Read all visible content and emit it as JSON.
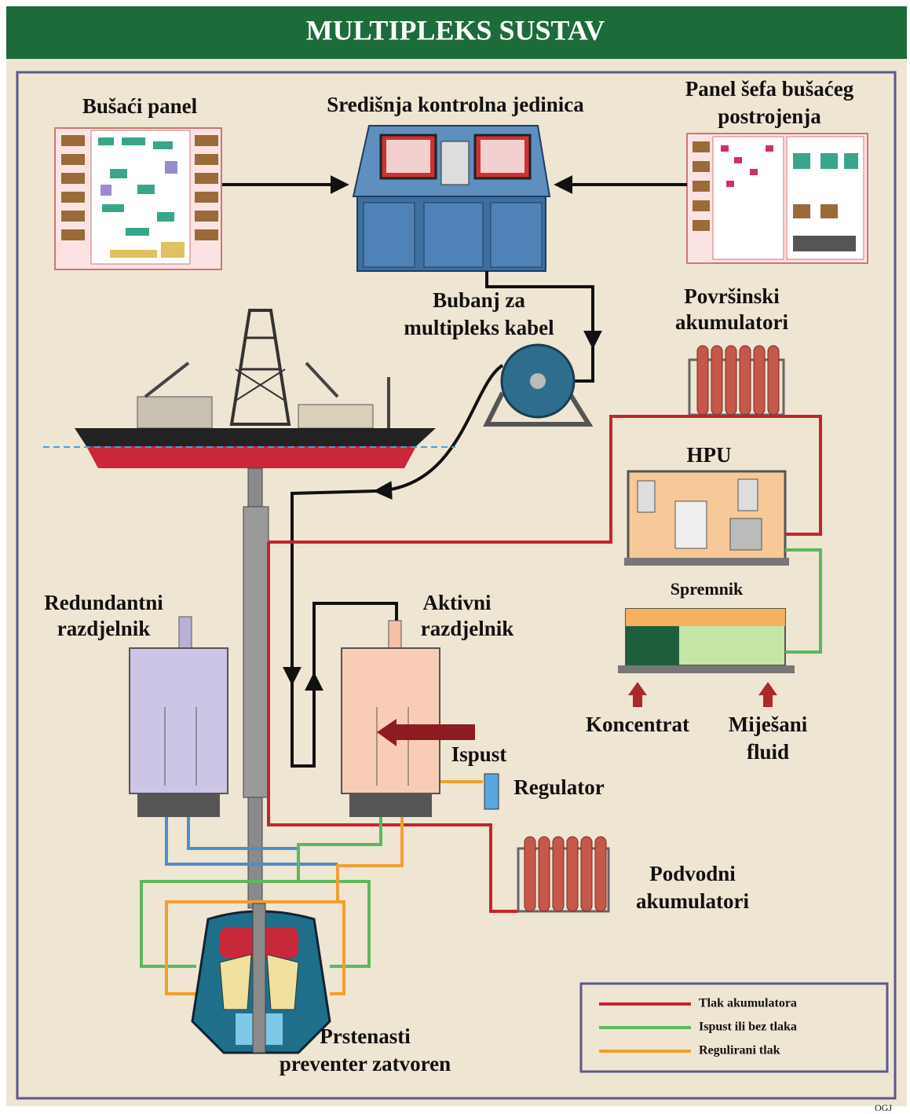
{
  "header": {
    "title": "MULTIPLEKS SUSTAV"
  },
  "nodes": [
    {
      "label": [
        "Bušaći panel"
      ]
    },
    {
      "label": [
        "Središnja kontrolna jedinica"
      ]
    },
    {
      "label": [
        "Panel šefa bušaćeg",
        "postrojenja"
      ]
    },
    {
      "label": [
        "Bubanj za",
        "multipleks kabel"
      ]
    },
    {
      "label": [
        "Površinski",
        "akumulatori"
      ]
    },
    {
      "label": [
        "HPU"
      ]
    },
    {
      "label": [
        "Spremnik"
      ]
    },
    {
      "label": [
        "Redundantni",
        "razdjelnik"
      ]
    },
    {
      "label": [
        "Aktivni",
        "razdjelnik"
      ]
    },
    {
      "label": [
        "Koncentrat"
      ]
    },
    {
      "label": [
        "Miješani",
        "fluid"
      ]
    },
    {
      "label": [
        "Ispust"
      ]
    },
    {
      "label": [
        "Regulator"
      ]
    },
    {
      "label": [
        "Podvodni",
        "akumulatori"
      ]
    },
    {
      "label": [
        "Prstenasti",
        "preventer zatvoren"
      ]
    }
  ],
  "legend": [
    {
      "label": "Tlak akumulatora",
      "color": "#c0272d"
    },
    {
      "label": "Ispust ili bez tlaka",
      "color": "#5cb85c"
    },
    {
      "label": "Regulirani tlak",
      "color": "#f0a030"
    }
  ],
  "footer": {
    "credit": "OGJ"
  }
}
